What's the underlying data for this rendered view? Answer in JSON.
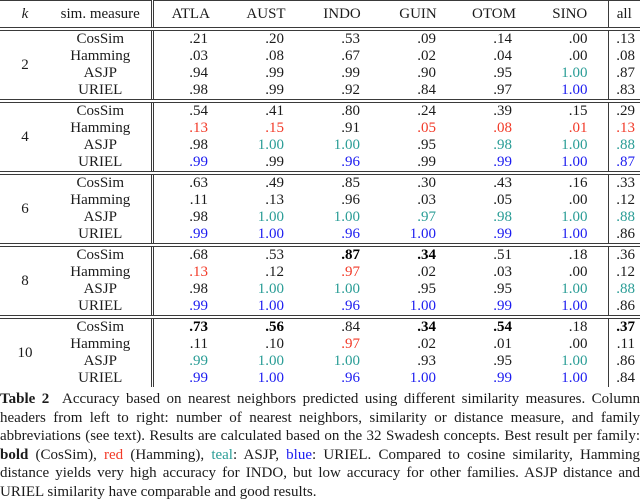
{
  "colors": {
    "red": "#f23a28",
    "teal": "#2a9d96",
    "blue": "#1c1cf0",
    "text": "#1b1b1b"
  },
  "table": {
    "headers": [
      "k",
      "sim. measure",
      "ATLA",
      "AUST",
      "INDO",
      "GUIN",
      "OTOM",
      "SINO",
      "all"
    ],
    "style_legend": {
      "n": "normal",
      "r": "red",
      "t": "teal",
      "u": "blue",
      "B": "bold"
    },
    "groups": [
      {
        "k": "2",
        "rows": [
          {
            "measure": "CosSim",
            "values": [
              [
                ".21",
                "n"
              ],
              [
                ".20",
                "n"
              ],
              [
                ".53",
                "n"
              ],
              [
                ".09",
                "n"
              ],
              [
                ".14",
                "n"
              ],
              [
                ".00",
                "n"
              ],
              [
                ".13",
                "n"
              ]
            ]
          },
          {
            "measure": "Hamming",
            "values": [
              [
                ".03",
                "n"
              ],
              [
                ".08",
                "n"
              ],
              [
                ".67",
                "n"
              ],
              [
                ".02",
                "n"
              ],
              [
                ".04",
                "n"
              ],
              [
                ".00",
                "n"
              ],
              [
                ".08",
                "n"
              ]
            ]
          },
          {
            "measure": "ASJP",
            "values": [
              [
                ".94",
                "n"
              ],
              [
                ".99",
                "n"
              ],
              [
                ".99",
                "n"
              ],
              [
                ".90",
                "n"
              ],
              [
                ".95",
                "n"
              ],
              [
                "1.00",
                "t"
              ],
              [
                ".87",
                "n"
              ]
            ]
          },
          {
            "measure": "URIEL",
            "values": [
              [
                ".98",
                "n"
              ],
              [
                ".99",
                "n"
              ],
              [
                ".92",
                "n"
              ],
              [
                ".84",
                "n"
              ],
              [
                ".97",
                "n"
              ],
              [
                "1.00",
                "u"
              ],
              [
                ".83",
                "n"
              ]
            ]
          }
        ]
      },
      {
        "k": "4",
        "rows": [
          {
            "measure": "CosSim",
            "values": [
              [
                ".54",
                "n"
              ],
              [
                ".41",
                "n"
              ],
              [
                ".80",
                "n"
              ],
              [
                ".24",
                "n"
              ],
              [
                ".39",
                "n"
              ],
              [
                ".15",
                "n"
              ],
              [
                ".29",
                "n"
              ]
            ]
          },
          {
            "measure": "Hamming",
            "values": [
              [
                ".13",
                "r"
              ],
              [
                ".15",
                "r"
              ],
              [
                ".91",
                "n"
              ],
              [
                ".05",
                "r"
              ],
              [
                ".08",
                "r"
              ],
              [
                ".01",
                "r"
              ],
              [
                ".13",
                "r"
              ]
            ]
          },
          {
            "measure": "ASJP",
            "values": [
              [
                ".98",
                "n"
              ],
              [
                "1.00",
                "t"
              ],
              [
                "1.00",
                "t"
              ],
              [
                ".95",
                "n"
              ],
              [
                ".98",
                "t"
              ],
              [
                "1.00",
                "t"
              ],
              [
                ".88",
                "t"
              ]
            ]
          },
          {
            "measure": "URIEL",
            "values": [
              [
                ".99",
                "u"
              ],
              [
                ".99",
                "n"
              ],
              [
                ".96",
                "u"
              ],
              [
                ".99",
                "n"
              ],
              [
                ".99",
                "u"
              ],
              [
                "1.00",
                "u"
              ],
              [
                ".87",
                "u"
              ]
            ]
          }
        ]
      },
      {
        "k": "6",
        "rows": [
          {
            "measure": "CosSim",
            "values": [
              [
                ".63",
                "n"
              ],
              [
                ".49",
                "n"
              ],
              [
                ".85",
                "n"
              ],
              [
                ".30",
                "n"
              ],
              [
                ".43",
                "n"
              ],
              [
                ".16",
                "n"
              ],
              [
                ".33",
                "n"
              ]
            ]
          },
          {
            "measure": "Hamming",
            "values": [
              [
                ".11",
                "n"
              ],
              [
                ".13",
                "n"
              ],
              [
                ".96",
                "n"
              ],
              [
                ".03",
                "n"
              ],
              [
                ".05",
                "n"
              ],
              [
                ".00",
                "n"
              ],
              [
                ".12",
                "n"
              ]
            ]
          },
          {
            "measure": "ASJP",
            "values": [
              [
                ".98",
                "n"
              ],
              [
                "1.00",
                "t"
              ],
              [
                "1.00",
                "t"
              ],
              [
                ".97",
                "t"
              ],
              [
                ".98",
                "t"
              ],
              [
                "1.00",
                "t"
              ],
              [
                ".88",
                "t"
              ]
            ]
          },
          {
            "measure": "URIEL",
            "values": [
              [
                ".99",
                "u"
              ],
              [
                "1.00",
                "u"
              ],
              [
                ".96",
                "u"
              ],
              [
                "1.00",
                "u"
              ],
              [
                ".99",
                "u"
              ],
              [
                "1.00",
                "u"
              ],
              [
                ".86",
                "n"
              ]
            ]
          }
        ]
      },
      {
        "k": "8",
        "rows": [
          {
            "measure": "CosSim",
            "values": [
              [
                ".68",
                "n"
              ],
              [
                ".53",
                "n"
              ],
              [
                ".87",
                "B"
              ],
              [
                ".34",
                "B"
              ],
              [
                ".51",
                "n"
              ],
              [
                ".18",
                "n"
              ],
              [
                ".36",
                "n"
              ]
            ]
          },
          {
            "measure": "Hamming",
            "values": [
              [
                ".13",
                "r"
              ],
              [
                ".12",
                "n"
              ],
              [
                ".97",
                "r"
              ],
              [
                ".02",
                "n"
              ],
              [
                ".03",
                "n"
              ],
              [
                ".00",
                "n"
              ],
              [
                ".12",
                "n"
              ]
            ]
          },
          {
            "measure": "ASJP",
            "values": [
              [
                ".98",
                "n"
              ],
              [
                "1.00",
                "t"
              ],
              [
                "1.00",
                "t"
              ],
              [
                ".95",
                "n"
              ],
              [
                ".95",
                "n"
              ],
              [
                "1.00",
                "t"
              ],
              [
                ".88",
                "t"
              ]
            ]
          },
          {
            "measure": "URIEL",
            "values": [
              [
                ".99",
                "u"
              ],
              [
                "1.00",
                "u"
              ],
              [
                ".96",
                "u"
              ],
              [
                "1.00",
                "u"
              ],
              [
                ".99",
                "u"
              ],
              [
                "1.00",
                "u"
              ],
              [
                ".86",
                "n"
              ]
            ]
          }
        ]
      },
      {
        "k": "10",
        "rows": [
          {
            "measure": "CosSim",
            "values": [
              [
                ".73",
                "B"
              ],
              [
                ".56",
                "B"
              ],
              [
                ".84",
                "n"
              ],
              [
                ".34",
                "B"
              ],
              [
                ".54",
                "B"
              ],
              [
                ".18",
                "n"
              ],
              [
                ".37",
                "B"
              ]
            ]
          },
          {
            "measure": "Hamming",
            "values": [
              [
                ".11",
                "n"
              ],
              [
                ".10",
                "n"
              ],
              [
                ".97",
                "r"
              ],
              [
                ".02",
                "n"
              ],
              [
                ".01",
                "n"
              ],
              [
                ".00",
                "n"
              ],
              [
                ".11",
                "n"
              ]
            ]
          },
          {
            "measure": "ASJP",
            "values": [
              [
                ".99",
                "t"
              ],
              [
                "1.00",
                "t"
              ],
              [
                "1.00",
                "t"
              ],
              [
                ".93",
                "n"
              ],
              [
                ".95",
                "n"
              ],
              [
                "1.00",
                "t"
              ],
              [
                ".86",
                "n"
              ]
            ]
          },
          {
            "measure": "URIEL",
            "values": [
              [
                ".99",
                "u"
              ],
              [
                "1.00",
                "u"
              ],
              [
                ".96",
                "u"
              ],
              [
                "1.00",
                "u"
              ],
              [
                ".99",
                "u"
              ],
              [
                "1.00",
                "u"
              ],
              [
                ".84",
                "n"
              ]
            ]
          }
        ]
      }
    ]
  },
  "caption": {
    "segments": [
      {
        "text": "Table 2",
        "style": "bold-label"
      },
      {
        "text": "Accuracy based on nearest neighbors predicted using different similarity measures. Column headers from left to right: number of nearest neighbors, similarity or distance measure, and family abbreviations (see text). Results are calculated based on the 32 Swadesh concepts. Best result per family: ",
        "style": "normal"
      },
      {
        "text": "bold",
        "style": "bold"
      },
      {
        "text": " (CosSim), ",
        "style": "normal"
      },
      {
        "text": "red",
        "style": "red"
      },
      {
        "text": " (Hamming), ",
        "style": "normal"
      },
      {
        "text": "teal",
        "style": "teal"
      },
      {
        "text": ": ASJP, ",
        "style": "normal"
      },
      {
        "text": "blue",
        "style": "blue"
      },
      {
        "text": ": URIEL. Compared to cosine similarity, Hamming distance yields very high accuracy for INDO, but low accuracy for other families. ASJP distance and URIEL similarity have comparable and good results.",
        "style": "normal"
      }
    ]
  }
}
